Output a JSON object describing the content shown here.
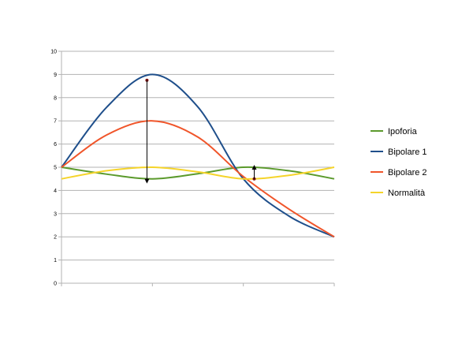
{
  "chart_data": {
    "type": "line",
    "x_categories": [
      "",
      "",
      ""
    ],
    "ylim": [
      0,
      10
    ],
    "y_ticks": [
      0,
      1,
      2,
      3,
      4,
      5,
      6,
      7,
      8,
      9,
      10
    ],
    "grid": true,
    "legend_position": "right",
    "series": [
      {
        "name": "Ipoforia",
        "color": "#5b9a2c",
        "x": [
          0,
          0.5,
          1,
          1.5,
          2,
          2.5,
          3
        ],
        "y": [
          5,
          4.7,
          4.5,
          4.72,
          5,
          4.85,
          4.5
        ]
      },
      {
        "name": "Bipolare 1",
        "color": "#1f4f8b",
        "x": [
          0,
          0.5,
          1,
          1.5,
          2,
          2.5,
          3
        ],
        "y": [
          5,
          7.6,
          9,
          7.6,
          4.5,
          2.9,
          2
        ]
      },
      {
        "name": "Bipolare 2",
        "color": "#f0552a",
        "x": [
          0,
          0.5,
          1,
          1.5,
          2,
          2.5,
          3
        ],
        "y": [
          5,
          6.4,
          7,
          6.3,
          4.6,
          3.2,
          2
        ]
      },
      {
        "name": "Normalità",
        "color": "#f5d42a",
        "x": [
          0,
          0.5,
          1,
          1.5,
          2,
          2.5,
          3
        ],
        "y": [
          4.5,
          4.85,
          5,
          4.8,
          4.5,
          4.65,
          5
        ]
      }
    ],
    "annotations": [
      {
        "type": "arrow",
        "x": 0.94,
        "y_from": 8.75,
        "y_to": 4.4,
        "color": "#000000"
      },
      {
        "type": "arrow",
        "x": 2.12,
        "y_from": 4.5,
        "y_to": 5.0,
        "color": "#000000"
      }
    ]
  }
}
